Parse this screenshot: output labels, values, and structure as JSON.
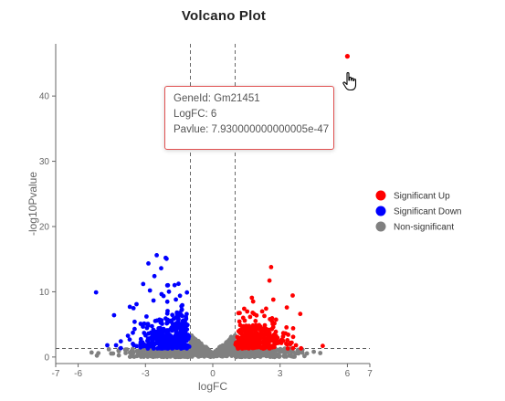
{
  "chart_data": {
    "type": "scatter",
    "title": "Volcano Plot",
    "xlabel": "logFC",
    "ylabel": "-log10Pvalue",
    "xlim": [
      -7,
      7
    ],
    "ylim": [
      -1,
      48
    ],
    "x_ticks": [
      "-7",
      "-6",
      "-3",
      "0",
      "3",
      "6",
      "7"
    ],
    "x_tick_values": [
      -7,
      -6,
      -3,
      0,
      3,
      6,
      7
    ],
    "y_ticks": [
      "0",
      "10",
      "20",
      "30",
      "40"
    ],
    "y_tick_values": [
      0,
      10,
      20,
      30,
      40
    ],
    "thresholds": {
      "logfc": [
        -1,
        1
      ],
      "neg_log10_pvalue": 1.3
    },
    "legend_position": "right",
    "series": [
      {
        "name": "Significant Up",
        "color": "#ff0000"
      },
      {
        "name": "Significant Down",
        "color": "#0000ff"
      },
      {
        "name": "Non-significant",
        "color": "#808080"
      }
    ],
    "highlighted_point": {
      "gene": "Gm21451",
      "x": 6,
      "y": 46.1
    }
  },
  "tooltip": {
    "gene_line": "GeneId: Gm21451",
    "logfc_line": "LogFC: 6",
    "pvalue_line": "Pavlue:  7.930000000000005e-47"
  }
}
